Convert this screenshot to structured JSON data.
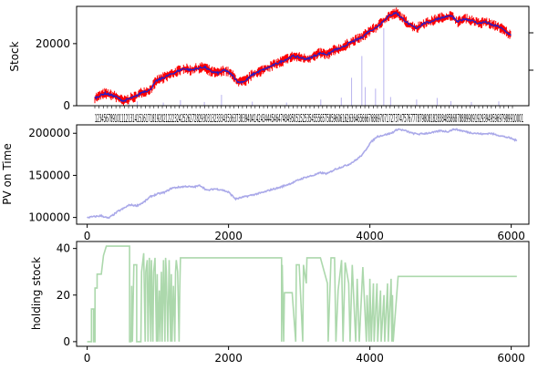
{
  "chart_data": [
    {
      "type": "line",
      "ylabel": "Stock",
      "xlim": [
        0,
        6100
      ],
      "ylim": [
        0,
        32000
      ],
      "yticks": [
        0,
        20000
      ],
      "xtick_labels_crowded": true,
      "xtick_label_text": "12345678910111213141516171819202122232425262728293031323334353637383940414243444546474849505152535455565758596061626364656667686970717273747576777879808182838485868788899091929394959697989910001",
      "series": [
        {
          "style": "close-line",
          "color": "#1f1fcc",
          "x": [
            0,
            150,
            300,
            420,
            500,
            600,
            700,
            800,
            900,
            1000,
            1100,
            1200,
            1300,
            1400,
            1500,
            1600,
            1700,
            1800,
            1900,
            2000,
            2100,
            2200,
            2300,
            2400,
            2500,
            2600,
            2700,
            2800,
            2900,
            3000,
            3100,
            3200,
            3300,
            3400,
            3500,
            3600,
            3700,
            3800,
            3900,
            4000,
            4100,
            4200,
            4300,
            4400,
            4500,
            4600,
            4700,
            4800,
            4900,
            5000,
            5100,
            5200,
            5300,
            5400,
            5500,
            5600,
            5700,
            5800,
            5900,
            6000,
            6080
          ],
          "y": [
            2500,
            4000,
            3000,
            1500,
            2200,
            3000,
            4500,
            5000,
            8000,
            9000,
            10000,
            11000,
            12000,
            11500,
            12000,
            12500,
            11000,
            10500,
            11500,
            10000,
            7500,
            8000,
            10000,
            11000,
            12000,
            13000,
            14000,
            15000,
            16000,
            15500,
            15000,
            16000,
            17000,
            16500,
            18000,
            18500,
            20000,
            21000,
            22000,
            24000,
            25000,
            27000,
            29000,
            30000,
            28000,
            26000,
            25000,
            26500,
            27000,
            28000,
            28500,
            29000,
            27000,
            28000,
            27500,
            26500,
            27000,
            26000,
            25500,
            24000,
            22500
          ]
        },
        {
          "style": "high-low-noise",
          "color": "#ff0000"
        }
      ],
      "volume_bars": [
        {
          "x": 500,
          "v": 600
        },
        {
          "x": 620,
          "v": 1400
        },
        {
          "x": 1000,
          "v": 1000
        },
        {
          "x": 1250,
          "v": 1800
        },
        {
          "x": 1600,
          "v": 1200
        },
        {
          "x": 1850,
          "v": 3500
        },
        {
          "x": 2300,
          "v": 1300
        },
        {
          "x": 2800,
          "v": 1000
        },
        {
          "x": 3300,
          "v": 2000
        },
        {
          "x": 3600,
          "v": 2600
        },
        {
          "x": 3750,
          "v": 9000
        },
        {
          "x": 3900,
          "v": 16000
        },
        {
          "x": 3950,
          "v": 6000
        },
        {
          "x": 4100,
          "v": 5500
        },
        {
          "x": 4220,
          "v": 25000
        },
        {
          "x": 4320,
          "v": 2800
        },
        {
          "x": 4700,
          "v": 2000
        },
        {
          "x": 5000,
          "v": 2500
        },
        {
          "x": 5200,
          "v": 1500
        },
        {
          "x": 5500,
          "v": 1200
        },
        {
          "x": 5900,
          "v": 1400
        }
      ]
    },
    {
      "type": "line",
      "ylabel": "PV on Time",
      "xlim": [
        -150,
        6250
      ],
      "ylim": [
        92000,
        210000
      ],
      "xticks": [
        0,
        2000,
        4000,
        6000
      ],
      "yticks": [
        100000,
        150000,
        200000
      ],
      "series": [
        {
          "color": "#aaa9e9",
          "x": [
            0,
            100,
            200,
            300,
            400,
            450,
            500,
            600,
            700,
            800,
            900,
            1000,
            1100,
            1200,
            1300,
            1400,
            1500,
            1600,
            1700,
            1800,
            1900,
            2000,
            2050,
            2100,
            2200,
            2300,
            2400,
            2500,
            2600,
            2700,
            2800,
            2900,
            3000,
            3100,
            3200,
            3300,
            3400,
            3500,
            3600,
            3700,
            3800,
            3900,
            4000,
            4100,
            4200,
            4300,
            4400,
            4500,
            4600,
            4700,
            4800,
            4900,
            5000,
            5100,
            5200,
            5300,
            5400,
            5500,
            5600,
            5700,
            5800,
            5900,
            6000,
            6080
          ],
          "y": [
            100000,
            101000,
            102000,
            99000,
            105000,
            108000,
            110000,
            115000,
            114000,
            118000,
            125000,
            128000,
            130000,
            135000,
            136000,
            137000,
            136000,
            138000,
            132000,
            134000,
            133000,
            130000,
            126000,
            122000,
            124000,
            126000,
            128000,
            130000,
            133000,
            135000,
            138000,
            141000,
            145000,
            148000,
            150000,
            153000,
            152000,
            157000,
            160000,
            163000,
            168000,
            175000,
            188000,
            196000,
            198000,
            200000,
            205000,
            203000,
            200000,
            199000,
            200000,
            201000,
            203000,
            202000,
            205000,
            203000,
            201000,
            200000,
            199000,
            200000,
            198000,
            196000,
            194000,
            191000
          ]
        }
      ]
    },
    {
      "type": "line",
      "ylabel": "holding stock",
      "xlim": [
        -150,
        6250
      ],
      "ylim": [
        -2,
        43
      ],
      "xticks": [
        0,
        2000,
        4000,
        6000
      ],
      "yticks": [
        0,
        20,
        40
      ],
      "series": [
        {
          "color": "#acd8ac",
          "x": [
            0,
            60,
            60,
            90,
            90,
            110,
            110,
            140,
            140,
            200,
            230,
            270,
            300,
            600,
            600,
            620,
            630,
            640,
            660,
            700,
            700,
            760,
            770,
            800,
            820,
            830,
            850,
            860,
            880,
            900,
            905,
            910,
            930,
            940,
            960,
            980,
            990,
            1000,
            1020,
            1030,
            1050,
            1060,
            1080,
            1100,
            1110,
            1120,
            1140,
            1160,
            1180,
            1190,
            1200,
            1220,
            1240,
            1250,
            1260,
            1280,
            1300,
            1310,
            1320,
            1330,
            1350,
            1400,
            2750,
            2750,
            2760,
            2780,
            2790,
            2800,
            2900,
            2950,
            2960,
            3000,
            3050,
            3060,
            3100,
            3110,
            3200,
            3300,
            3400,
            3410,
            3450,
            3500,
            3520,
            3550,
            3600,
            3620,
            3650,
            3700,
            3720,
            3750,
            3800,
            3820,
            3850,
            3900,
            3950,
            3960,
            3990,
            4000,
            4020,
            4050,
            4060,
            4100,
            4110,
            4150,
            4160,
            4200,
            4210,
            4250,
            4260,
            4300,
            4310,
            4320,
            4330,
            4400,
            6080
          ],
          "y": [
            0,
            0,
            14,
            14,
            0,
            0,
            23,
            23,
            29,
            29,
            37,
            41,
            41,
            41,
            0,
            0,
            24,
            0,
            33,
            33,
            0,
            0,
            30,
            38,
            0,
            30,
            35,
            0,
            36,
            0,
            30,
            35,
            0,
            30,
            36,
            0,
            29,
            0,
            22,
            0,
            30,
            0,
            35,
            0,
            36,
            30,
            0,
            35,
            0,
            29,
            0,
            24,
            0,
            30,
            35,
            30,
            0,
            22,
            36,
            36,
            36,
            36,
            36,
            0,
            33,
            0,
            21,
            21,
            21,
            0,
            33,
            33,
            0,
            33,
            25,
            36,
            36,
            36,
            25,
            0,
            36,
            36,
            0,
            22,
            35,
            0,
            34,
            25,
            0,
            33,
            0,
            27,
            0,
            32,
            0,
            20,
            0,
            27,
            0,
            25,
            0,
            25,
            0,
            22,
            0,
            20,
            0,
            25,
            0,
            27,
            0,
            20,
            0,
            28,
            28
          ]
        }
      ]
    }
  ]
}
